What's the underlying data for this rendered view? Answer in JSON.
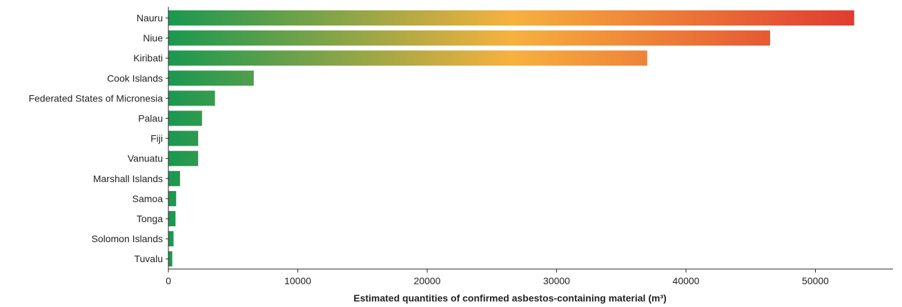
{
  "chart_data": {
    "type": "bar",
    "orientation": "horizontal",
    "categories": [
      "Nauru",
      "Niue",
      "Kiribati",
      "Cook Islands",
      "Federated States of Micronesia",
      "Palau",
      "Fiji",
      "Vanuatu",
      "Marshall Islands",
      "Samoa",
      "Tonga",
      "Solomon Islands",
      "Tuvalu"
    ],
    "values": [
      53000,
      46500,
      37000,
      6600,
      3600,
      2600,
      2300,
      2300,
      900,
      600,
      550,
      400,
      300
    ],
    "title": "",
    "xlabel": "Estimated quantities of confirmed asbestos-containing material (m³)",
    "ylabel": "",
    "xlim": [
      0,
      56000
    ],
    "xticks": [
      "0",
      "10000",
      "20000",
      "30000",
      "40000",
      "50000"
    ],
    "grid": false,
    "legend": "none",
    "colors": {
      "gradient_low": "#1a9850",
      "gradient_mid": "#f7b13e",
      "gradient_high": "#e03c31"
    }
  }
}
